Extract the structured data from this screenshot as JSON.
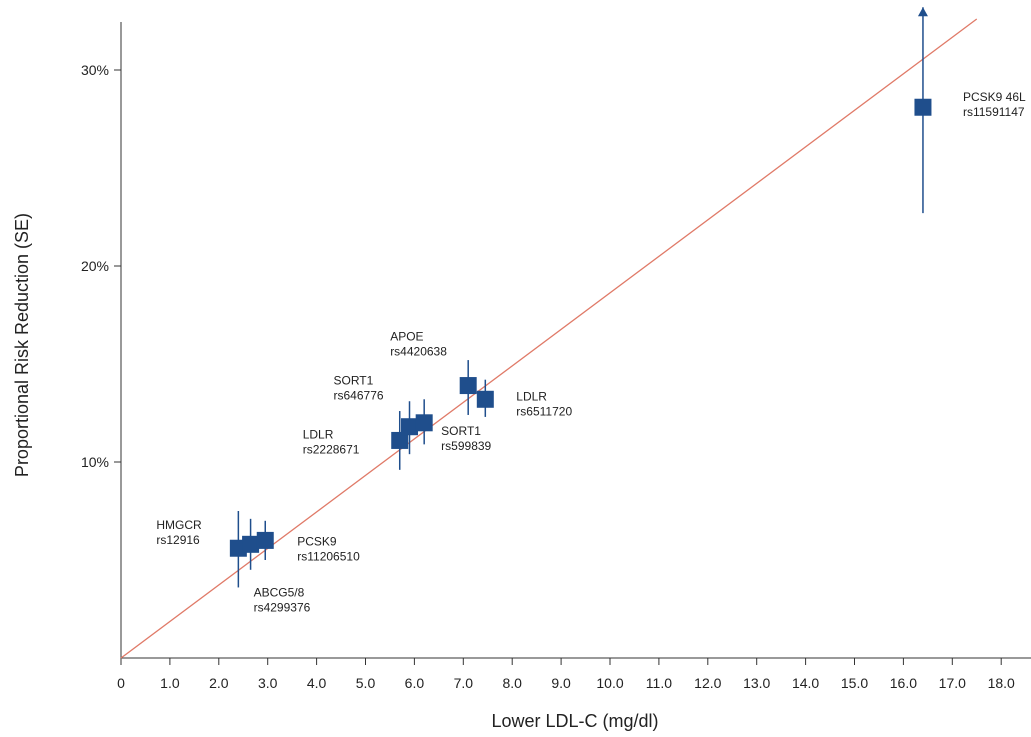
{
  "chart_data": {
    "type": "scatter",
    "xlabel": "Lower LDL-C (mg/dl)",
    "ylabel": "Proportional Risk Reduction (SE)",
    "xlim": [
      0,
      18.0
    ],
    "ylim": [
      0,
      30
    ],
    "x_ticks": [
      "0",
      "1.0",
      "2.0",
      "3.0",
      "4.0",
      "5.0",
      "6.0",
      "7.0",
      "8.0",
      "9.0",
      "10.0",
      "11.0",
      "12.0",
      "13.0",
      "14.0",
      "15.0",
      "16.0",
      "17.0",
      "18.0"
    ],
    "y_ticks": [
      {
        "value": 10,
        "label": "10%"
      },
      {
        "value": 20,
        "label": "20%"
      },
      {
        "value": 30,
        "label": "30%"
      }
    ],
    "grid": false,
    "colors": {
      "marker": "#1f4e8c",
      "errorbar": "#1f4e8c",
      "fit_line": "#e07a68",
      "axis": "#333333"
    },
    "fit_line": {
      "x": [
        0,
        17.5
      ],
      "y": [
        0,
        32.6
      ]
    },
    "points": [
      {
        "id": "hmgcr",
        "x": 2.4,
        "y": 5.6,
        "low": 3.6,
        "high": 7.5,
        "label": [
          "HMGCR",
          "rs12916"
        ]
      },
      {
        "id": "abcg58",
        "x": 2.65,
        "y": 5.8,
        "low": 4.5,
        "high": 7.1,
        "label": [
          "ABCG5/8",
          "rs4299376"
        ]
      },
      {
        "id": "pcsk9a",
        "x": 2.95,
        "y": 6.0,
        "low": 5.0,
        "high": 7.0,
        "label": [
          "PCSK9",
          "rs11206510"
        ]
      },
      {
        "id": "ldlr1",
        "x": 5.7,
        "y": 11.1,
        "low": 9.6,
        "high": 12.6,
        "label": [
          "LDLR",
          "rs2228671"
        ]
      },
      {
        "id": "sort1a",
        "x": 5.9,
        "y": 11.8,
        "low": 10.4,
        "high": 13.1,
        "label": [
          "SORT1",
          "rs646776"
        ]
      },
      {
        "id": "sort1b",
        "x": 6.2,
        "y": 12.0,
        "low": 10.9,
        "high": 13.2,
        "label": [
          "SORT1",
          "rs599839"
        ]
      },
      {
        "id": "apoe",
        "x": 7.1,
        "y": 13.9,
        "low": 12.4,
        "high": 15.2,
        "label": [
          "APOE",
          "rs4420638"
        ]
      },
      {
        "id": "ldlr2",
        "x": 7.45,
        "y": 13.2,
        "low": 12.3,
        "high": 14.2,
        "label": [
          "LDLR",
          "rs6511720"
        ]
      },
      {
        "id": "pcsk9b",
        "x": 16.4,
        "y": 28.1,
        "low": 22.7,
        "high": 33.2,
        "arrow": true,
        "label": [
          "PCSK9 46L",
          "rs11591147"
        ]
      }
    ]
  }
}
